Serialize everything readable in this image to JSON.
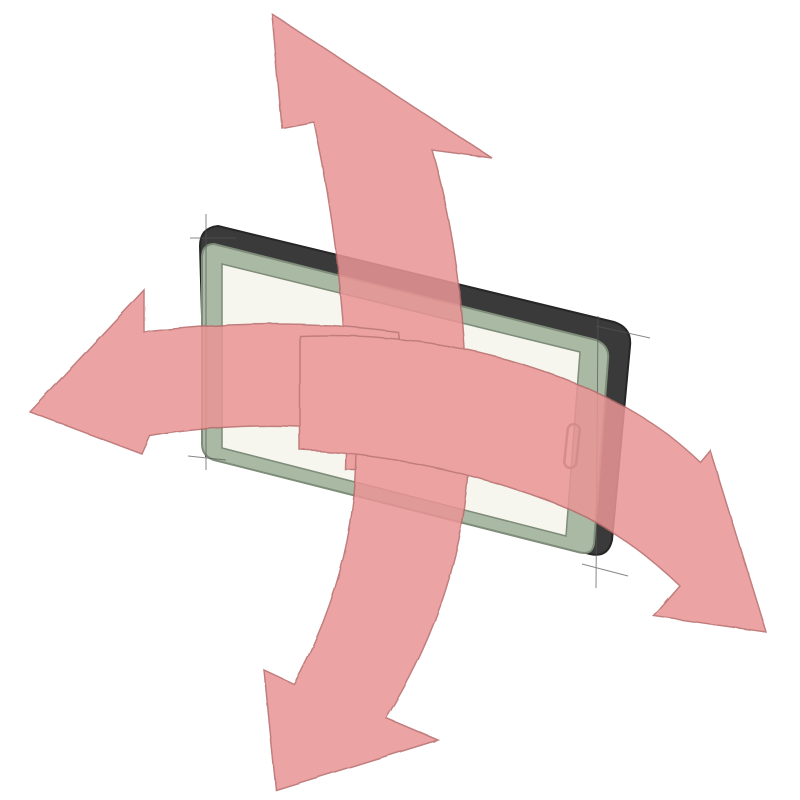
{
  "illustration": {
    "subject": "phone-rotation",
    "arrow_count": 4,
    "colors": {
      "arrow_fill": "#ea9595",
      "arrow_stroke": "#b86a6a",
      "phone_body": "#3a3a3a",
      "phone_frame": "#a9b9a4",
      "phone_screen": "#f6f6ef",
      "sketch_line": "#555555",
      "background": "#ffffff"
    },
    "icons": {
      "arrow_up": "arrow-up-icon",
      "arrow_down": "arrow-down-icon",
      "arrow_left": "arrow-left-icon",
      "arrow_right": "arrow-right-icon",
      "phone": "smartphone-icon",
      "home_button": "home-button-icon"
    }
  }
}
